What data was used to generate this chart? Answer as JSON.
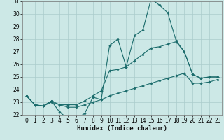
{
  "xlabel": "Humidex (Indice chaleur)",
  "background_color": "#cce8e6",
  "grid_color": "#aacccc",
  "line_color": "#1a6b6b",
  "x_hours": [
    0,
    1,
    2,
    3,
    4,
    5,
    6,
    7,
    8,
    9,
    10,
    11,
    12,
    13,
    14,
    15,
    16,
    17,
    18,
    19,
    20,
    21,
    22,
    23
  ],
  "line_top": [
    23.5,
    22.8,
    22.7,
    23.1,
    22.2,
    21.7,
    21.7,
    22.1,
    23.4,
    23.2,
    27.5,
    28.0,
    25.8,
    28.3,
    28.7,
    31.2,
    30.7,
    30.1,
    27.9,
    27.0,
    25.2,
    24.9,
    25.0,
    25.0
  ],
  "line_mid": [
    23.5,
    22.8,
    22.7,
    23.1,
    22.8,
    22.8,
    22.8,
    23.1,
    23.5,
    23.9,
    25.5,
    25.6,
    25.8,
    26.3,
    26.8,
    27.3,
    27.4,
    27.6,
    27.8,
    27.0,
    25.2,
    24.9,
    25.0,
    25.0
  ],
  "line_bot": [
    23.5,
    22.8,
    22.7,
    23.0,
    22.8,
    22.6,
    22.6,
    22.8,
    23.0,
    23.2,
    23.5,
    23.7,
    23.9,
    24.1,
    24.3,
    24.5,
    24.7,
    24.9,
    25.1,
    25.3,
    24.5,
    24.5,
    24.6,
    24.8
  ],
  "ylim": [
    22,
    31
  ],
  "yticks": [
    22,
    23,
    24,
    25,
    26,
    27,
    28,
    29,
    30,
    31
  ],
  "xticks": [
    0,
    1,
    2,
    3,
    4,
    5,
    6,
    7,
    8,
    9,
    10,
    11,
    12,
    13,
    14,
    15,
    16,
    17,
    18,
    19,
    20,
    21,
    22,
    23
  ],
  "axis_fontsize": 6.5,
  "tick_fontsize": 5.5
}
